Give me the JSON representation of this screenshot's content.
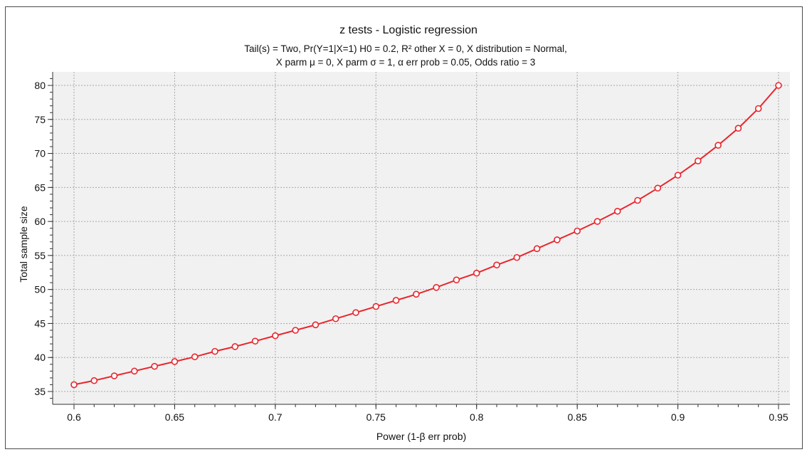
{
  "chart_data": {
    "type": "line",
    "title": "z tests - Logistic regression",
    "subtitle_lines": [
      "Tail(s) = Two, Pr(Y=1|X=1) H0 = 0.2, R² other X = 0, X distribution = Normal,",
      "X parm μ = 0, X parm σ = 1, α err prob = 0.05, Odds ratio = 3"
    ],
    "xlabel": "Power (1-β err prob)",
    "ylabel": "Total sample size",
    "xlim": [
      0.6,
      0.95
    ],
    "ylim": [
      35,
      80
    ],
    "x_ticks": [
      "0.6",
      "0.65",
      "0.7",
      "0.75",
      "0.8",
      "0.85",
      "0.9",
      "0.95"
    ],
    "y_ticks": [
      "35",
      "40",
      "45",
      "50",
      "55",
      "60",
      "65",
      "70",
      "75",
      "80"
    ],
    "grid": true,
    "line_color": "#e8262d",
    "series": [
      {
        "x": [
          0.6,
          0.61,
          0.62,
          0.63,
          0.64,
          0.65,
          0.66,
          0.67,
          0.68,
          0.69,
          0.7,
          0.71,
          0.72,
          0.73,
          0.74,
          0.75,
          0.76,
          0.77,
          0.78,
          0.79,
          0.8,
          0.81,
          0.82,
          0.83,
          0.84,
          0.85,
          0.86,
          0.87,
          0.88,
          0.89,
          0.9,
          0.91,
          0.92,
          0.93,
          0.94,
          0.95
        ],
        "values": [
          36.0,
          36.6,
          37.3,
          38.0,
          38.7,
          39.4,
          40.1,
          40.9,
          41.6,
          42.4,
          43.2,
          44.0,
          44.8,
          45.7,
          46.6,
          47.5,
          48.4,
          49.3,
          50.3,
          51.4,
          52.4,
          53.6,
          54.7,
          56.0,
          57.3,
          58.6,
          60.0,
          61.5,
          63.1,
          64.9,
          66.8,
          68.9,
          71.2,
          73.7,
          76.6,
          80.0
        ]
      }
    ]
  }
}
